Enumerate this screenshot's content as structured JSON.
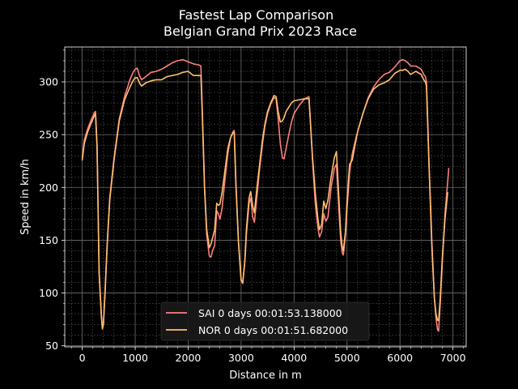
{
  "chart_data": {
    "type": "line",
    "title": "Fastest Lap Comparison",
    "subtitle": "Belgian Grand Prix 2023 Race",
    "xlabel": "Distance in m",
    "ylabel": "Speed in km/h",
    "xlim": [
      -330,
      7250
    ],
    "ylim": [
      49,
      333
    ],
    "x_ticks": [
      0,
      1000,
      2000,
      3000,
      4000,
      5000,
      6000,
      7000
    ],
    "y_ticks": [
      50,
      100,
      150,
      200,
      250,
      300
    ],
    "grid": true,
    "minor_grid": true,
    "legend_position": "lower-center",
    "background": "#000000",
    "series": [
      {
        "name": "SAI 0 days 00:01:53.138000",
        "color": "#ff7f7f",
        "points": [
          [
            0,
            228
          ],
          [
            40,
            245
          ],
          [
            100,
            255
          ],
          [
            160,
            263
          ],
          [
            230,
            271
          ],
          [
            250,
            272
          ],
          [
            280,
            240
          ],
          [
            320,
            120
          ],
          [
            360,
            80
          ],
          [
            380,
            68
          ],
          [
            400,
            72
          ],
          [
            430,
            100
          ],
          [
            470,
            145
          ],
          [
            520,
            190
          ],
          [
            600,
            228
          ],
          [
            700,
            265
          ],
          [
            800,
            286
          ],
          [
            900,
            302
          ],
          [
            960,
            309
          ],
          [
            1000,
            312
          ],
          [
            1040,
            313
          ],
          [
            1080,
            306
          ],
          [
            1120,
            302
          ],
          [
            1200,
            305
          ],
          [
            1300,
            309
          ],
          [
            1400,
            310
          ],
          [
            1500,
            312
          ],
          [
            1600,
            315
          ],
          [
            1700,
            318
          ],
          [
            1800,
            320
          ],
          [
            1900,
            321
          ],
          [
            2000,
            319
          ],
          [
            2100,
            317
          ],
          [
            2200,
            316
          ],
          [
            2240,
            315
          ],
          [
            2270,
            270
          ],
          [
            2310,
            200
          ],
          [
            2350,
            155
          ],
          [
            2400,
            135
          ],
          [
            2430,
            134
          ],
          [
            2460,
            140
          ],
          [
            2500,
            145
          ],
          [
            2540,
            178
          ],
          [
            2570,
            175
          ],
          [
            2600,
            170
          ],
          [
            2640,
            180
          ],
          [
            2700,
            210
          ],
          [
            2750,
            232
          ],
          [
            2800,
            247
          ],
          [
            2850,
            253
          ],
          [
            2870,
            254
          ],
          [
            2900,
            205
          ],
          [
            2950,
            150
          ],
          [
            3000,
            112
          ],
          [
            3030,
            109
          ],
          [
            3070,
            130
          ],
          [
            3100,
            155
          ],
          [
            3150,
            185
          ],
          [
            3180,
            190
          ],
          [
            3220,
            172
          ],
          [
            3250,
            167
          ],
          [
            3300,
            192
          ],
          [
            3350,
            218
          ],
          [
            3400,
            240
          ],
          [
            3450,
            258
          ],
          [
            3500,
            270
          ],
          [
            3560,
            279
          ],
          [
            3620,
            285
          ],
          [
            3660,
            284
          ],
          [
            3700,
            265
          ],
          [
            3740,
            242
          ],
          [
            3780,
            228
          ],
          [
            3810,
            227
          ],
          [
            3850,
            237
          ],
          [
            3900,
            250
          ],
          [
            3950,
            262
          ],
          [
            4000,
            270
          ],
          [
            4100,
            278
          ],
          [
            4200,
            284
          ],
          [
            4280,
            286
          ],
          [
            4300,
            270
          ],
          [
            4350,
            225
          ],
          [
            4400,
            185
          ],
          [
            4450,
            162
          ],
          [
            4480,
            153
          ],
          [
            4520,
            158
          ],
          [
            4560,
            175
          ],
          [
            4600,
            168
          ],
          [
            4640,
            172
          ],
          [
            4700,
            200
          ],
          [
            4760,
            218
          ],
          [
            4800,
            222
          ],
          [
            4850,
            175
          ],
          [
            4880,
            150
          ],
          [
            4910,
            138
          ],
          [
            4930,
            136
          ],
          [
            4970,
            155
          ],
          [
            5000,
            180
          ],
          [
            5050,
            215
          ],
          [
            5100,
            232
          ],
          [
            5150,
            243
          ],
          [
            5200,
            253
          ],
          [
            5300,
            270
          ],
          [
            5400,
            285
          ],
          [
            5500,
            295
          ],
          [
            5600,
            302
          ],
          [
            5700,
            307
          ],
          [
            5800,
            309
          ],
          [
            5900,
            314
          ],
          [
            6000,
            320
          ],
          [
            6050,
            321
          ],
          [
            6100,
            320
          ],
          [
            6150,
            318
          ],
          [
            6200,
            315
          ],
          [
            6300,
            315
          ],
          [
            6400,
            312
          ],
          [
            6440,
            308
          ],
          [
            6460,
            306
          ],
          [
            6480,
            305
          ],
          [
            6500,
            300
          ],
          [
            6550,
            220
          ],
          [
            6600,
            150
          ],
          [
            6650,
            95
          ],
          [
            6680,
            76
          ],
          [
            6710,
            65
          ],
          [
            6730,
            64
          ],
          [
            6760,
            90
          ],
          [
            6800,
            130
          ],
          [
            6850,
            175
          ],
          [
            6900,
            205
          ],
          [
            6920,
            218
          ]
        ]
      },
      {
        "name": "NOR 0 days 00:01:51.682000",
        "color": "#ffbf70",
        "points": [
          [
            0,
            226
          ],
          [
            40,
            242
          ],
          [
            100,
            252
          ],
          [
            160,
            260
          ],
          [
            230,
            268
          ],
          [
            250,
            270
          ],
          [
            280,
            238
          ],
          [
            320,
            118
          ],
          [
            360,
            78
          ],
          [
            380,
            66
          ],
          [
            400,
            70
          ],
          [
            430,
            98
          ],
          [
            470,
            143
          ],
          [
            520,
            188
          ],
          [
            600,
            226
          ],
          [
            700,
            263
          ],
          [
            800,
            283
          ],
          [
            900,
            295
          ],
          [
            960,
            301
          ],
          [
            1000,
            304
          ],
          [
            1040,
            304
          ],
          [
            1080,
            299
          ],
          [
            1120,
            296
          ],
          [
            1200,
            299
          ],
          [
            1300,
            301
          ],
          [
            1400,
            302
          ],
          [
            1500,
            302
          ],
          [
            1600,
            305
          ],
          [
            1700,
            306
          ],
          [
            1800,
            307
          ],
          [
            1900,
            309
          ],
          [
            2000,
            310
          ],
          [
            2100,
            306
          ],
          [
            2200,
            306
          ],
          [
            2240,
            306
          ],
          [
            2270,
            265
          ],
          [
            2310,
            200
          ],
          [
            2350,
            160
          ],
          [
            2400,
            143
          ],
          [
            2430,
            146
          ],
          [
            2460,
            152
          ],
          [
            2500,
            160
          ],
          [
            2540,
            185
          ],
          [
            2570,
            183
          ],
          [
            2600,
            184
          ],
          [
            2640,
            195
          ],
          [
            2700,
            218
          ],
          [
            2750,
            237
          ],
          [
            2800,
            247
          ],
          [
            2850,
            252
          ],
          [
            2870,
            252
          ],
          [
            2900,
            205
          ],
          [
            2950,
            148
          ],
          [
            3000,
            112
          ],
          [
            3030,
            110
          ],
          [
            3070,
            130
          ],
          [
            3100,
            160
          ],
          [
            3150,
            190
          ],
          [
            3180,
            196
          ],
          [
            3220,
            182
          ],
          [
            3250,
            176
          ],
          [
            3300,
            200
          ],
          [
            3350,
            222
          ],
          [
            3400,
            244
          ],
          [
            3450,
            260
          ],
          [
            3500,
            272
          ],
          [
            3560,
            280
          ],
          [
            3620,
            287
          ],
          [
            3660,
            286
          ],
          [
            3700,
            272
          ],
          [
            3740,
            262
          ],
          [
            3780,
            263
          ],
          [
            3810,
            266
          ],
          [
            3850,
            272
          ],
          [
            3900,
            276
          ],
          [
            3950,
            280
          ],
          [
            4000,
            282
          ],
          [
            4100,
            283
          ],
          [
            4200,
            284
          ],
          [
            4280,
            284
          ],
          [
            4300,
            268
          ],
          [
            4350,
            228
          ],
          [
            4400,
            195
          ],
          [
            4450,
            170
          ],
          [
            4480,
            160
          ],
          [
            4520,
            165
          ],
          [
            4560,
            187
          ],
          [
            4600,
            180
          ],
          [
            4640,
            188
          ],
          [
            4700,
            210
          ],
          [
            4760,
            228
          ],
          [
            4800,
            234
          ],
          [
            4850,
            185
          ],
          [
            4880,
            158
          ],
          [
            4910,
            143
          ],
          [
            4930,
            140
          ],
          [
            4970,
            158
          ],
          [
            5000,
            188
          ],
          [
            5050,
            222
          ],
          [
            5100,
            226
          ],
          [
            5150,
            240
          ],
          [
            5200,
            253
          ],
          [
            5300,
            270
          ],
          [
            5400,
            284
          ],
          [
            5500,
            293
          ],
          [
            5600,
            297
          ],
          [
            5700,
            299
          ],
          [
            5800,
            302
          ],
          [
            5900,
            308
          ],
          [
            6000,
            311
          ],
          [
            6050,
            311
          ],
          [
            6100,
            312
          ],
          [
            6150,
            310
          ],
          [
            6200,
            307
          ],
          [
            6300,
            310
          ],
          [
            6400,
            307
          ],
          [
            6440,
            303
          ],
          [
            6460,
            301
          ],
          [
            6480,
            300
          ],
          [
            6500,
            296
          ],
          [
            6550,
            218
          ],
          [
            6600,
            145
          ],
          [
            6650,
            95
          ],
          [
            6680,
            80
          ],
          [
            6710,
            74
          ],
          [
            6730,
            74
          ],
          [
            6760,
            95
          ],
          [
            6800,
            135
          ],
          [
            6850,
            170
          ],
          [
            6900,
            195
          ]
        ]
      }
    ]
  }
}
